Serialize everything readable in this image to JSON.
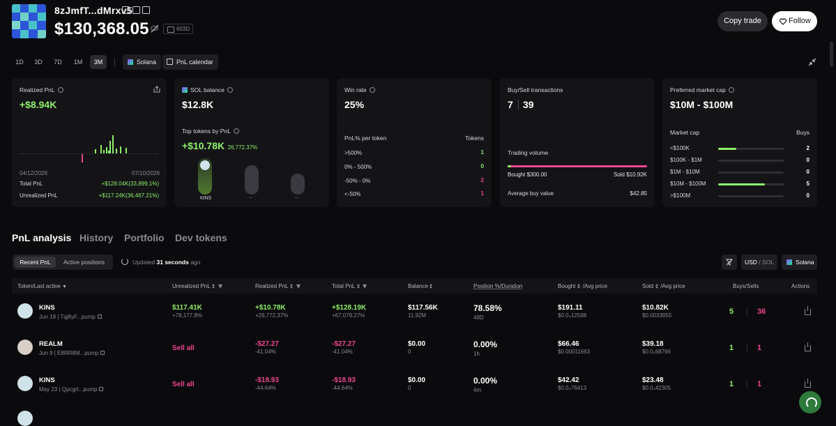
{
  "header": {
    "wallet_name": "8zJmfT...dMrxv5",
    "balance": "$130,368.05",
    "age": "603D",
    "copy_trade_label": "Copy trade",
    "follow_label": "Follow"
  },
  "timeframes": [
    "1D",
    "3D",
    "7D",
    "1M",
    "3M"
  ],
  "active_timeframe": "3M",
  "chips": {
    "chain": "Solana",
    "calendar": "PnL calendar"
  },
  "cards": {
    "realized": {
      "title": "Realized PnL",
      "value": "+$8.94K",
      "date_start": "04/12/2026",
      "date_end": "07/10/2026",
      "total_label": "Total PnL",
      "total_value": "+$128.04K(33,899.1%)",
      "unrealized_label": "Unrealized PnL",
      "unrealized_value": "+$117.24K(36,467.21%)"
    },
    "sol": {
      "title": "SOL balance",
      "value": "$12.8K",
      "top_title": "Top tokens by PnL",
      "top_value": "+$10.78K",
      "top_pct": "26,772.37%",
      "tokens": [
        "KINS",
        "--",
        "--"
      ]
    },
    "winrate": {
      "title": "Win rate",
      "value": "25%",
      "per_token_label": "PnL% per token",
      "tokens_label": "Tokens",
      "rows": [
        {
          "label": ">500%",
          "count": "1"
        },
        {
          "label": "0% - 500%",
          "count": "0"
        },
        {
          "label": "-50% - 0%",
          "count": "2"
        },
        {
          "label": "<-50%",
          "count": "1"
        }
      ]
    },
    "buysell": {
      "title": "Buy/Sell transactions",
      "buys": "7",
      "sells": "39",
      "volume_label": "Trading volume",
      "volume_buy_fraction": 0.027,
      "bought": "Bought $300.00",
      "sold": "Sold $10.92K",
      "avg_label": "Average buy value",
      "avg_value": "$42.85"
    },
    "mcap": {
      "title": "Preferred market cap",
      "value": "$10M - $100M",
      "header_label": "Market cap",
      "buys_label": "Buys",
      "rows": [
        {
          "label": "<$100K",
          "count": "2",
          "fill": 0.28
        },
        {
          "label": "$100K - $1M",
          "count": "0",
          "fill": 0
        },
        {
          "label": "$1M - $10M",
          "count": "0",
          "fill": 0
        },
        {
          "label": "$10M - $100M",
          "count": "5",
          "fill": 0.71
        },
        {
          "label": ">$100M",
          "count": "0",
          "fill": 0
        }
      ]
    }
  },
  "tabs": [
    "PnL analysis",
    "History",
    "Portfolio",
    "Dev tokens"
  ],
  "subtabs": [
    "Recent PnL",
    "Active positions"
  ],
  "updated": {
    "prefix": "Updated",
    "value": "31 seconds",
    "suffix": "ago"
  },
  "currency_toggle": {
    "usd": "USD",
    "sep": "/",
    "sol": "SOL"
  },
  "chain_filter": "Solana",
  "columns": [
    "Token/Last active",
    "Unrealized PnL",
    "Realized PnL",
    "Total PnL",
    "Balance",
    "Position %/Duration",
    "Bought",
    "/Avg price",
    "Sold",
    "/Avg price",
    "Buys/Sells",
    "Actions"
  ],
  "rows": [
    {
      "token": "KINS",
      "date": "Jun 19",
      "address": "Tqj8yF...pump",
      "unrealized": "$117.41K",
      "unrealized_pct": "+78,177.8%",
      "realized": "+$10.78K",
      "realized_pct": "+26,772.37%",
      "total": "+$128.19K",
      "total_pct": "+67,079.27%",
      "balance": "$117.56K",
      "balance_sub": "11.92M",
      "position": "78.58%",
      "duration": "48D",
      "bought": "$191.11",
      "bought_avg": "$0.0₄12598",
      "sold": "$10.82K",
      "sold_avg": "$0.0033855",
      "buys": "5",
      "sells": "36"
    },
    {
      "token": "REALM",
      "date": "Jun 9",
      "address": "E8RR8M...pump",
      "unrealized": "Sell all",
      "unrealized_pct": "",
      "realized": "-$27.27",
      "realized_pct": "-41.04%",
      "total": "-$27.27",
      "total_pct": "-41.04%",
      "balance": "$0.00",
      "balance_sub": "0",
      "position": "0.00%",
      "duration": "1h",
      "bought": "$66.46",
      "bought_avg": "$0.00011663",
      "sold": "$39.18",
      "sold_avg": "$0.0₄68766",
      "buys": "1",
      "sells": "1"
    },
    {
      "token": "KINS",
      "date": "May 23",
      "address": "Qpcgrt...pump",
      "unrealized": "Sell all",
      "unrealized_pct": "",
      "realized": "-$18.93",
      "realized_pct": "-44.64%",
      "total": "-$18.93",
      "total_pct": "-44.64%",
      "balance": "$0.00",
      "balance_sub": "0",
      "position": "0.00%",
      "duration": "4m",
      "bought": "$42.42",
      "bought_avg": "$0.0₄76413",
      "sold": "$23.48",
      "sold_avg": "$0.0₄42305",
      "buys": "1",
      "sells": "1"
    }
  ],
  "colors": {
    "green": "#8ef06a",
    "pink": "#f0458f",
    "avatar": "#2c54d6"
  }
}
